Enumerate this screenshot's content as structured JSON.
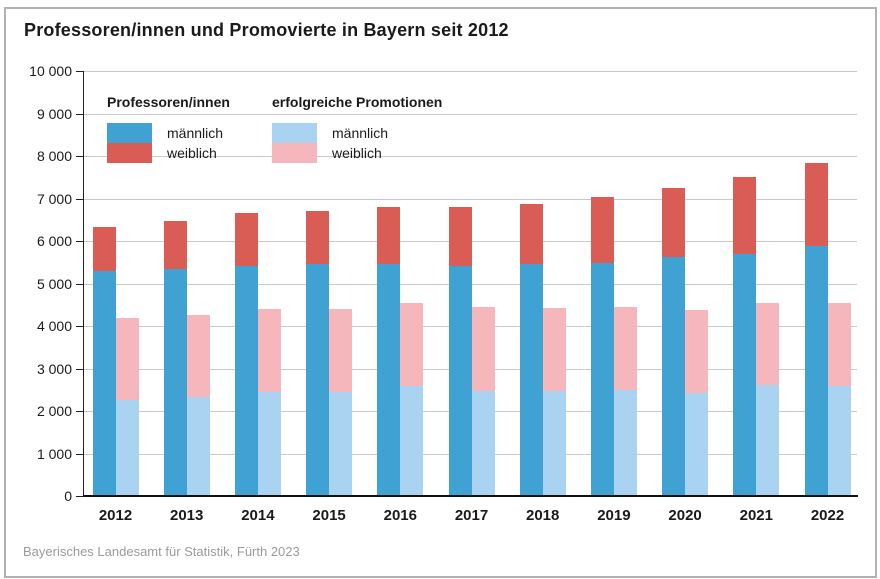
{
  "title": "Professoren/innen und Promovierte in Bayern seit 2012",
  "source": "Bayerisches Landesamt für Statistik, Fürth 2023",
  "legend": {
    "professoren_title": "Professoren/innen",
    "promotionen_title": "erfolgreiche Promotionen",
    "maennlich": "männlich",
    "weiblich": "weiblich"
  },
  "colors": {
    "prof_m": "#3fa2d2",
    "prof_w": "#d95c55",
    "prom_m": "#a9d3f0",
    "prom_w": "#f5b7bc",
    "grid": "#c9c9c9",
    "axis": "#222222",
    "frame": "#b2b2b2",
    "source_text": "#9b9b9b"
  },
  "chart_data": {
    "type": "bar",
    "stacked": true,
    "grid": true,
    "legend_position": "inside-top-left",
    "title": "Professoren/innen und Promovierte in Bayern seit 2012",
    "xlabel": "",
    "ylabel": "",
    "ylim": [
      0,
      10000
    ],
    "ytick_interval": 1000,
    "yticks": [
      {
        "value": 10000,
        "label": "10 000"
      },
      {
        "value": 9000,
        "label": "9 000"
      },
      {
        "value": 8000,
        "label": "8 000"
      },
      {
        "value": 7000,
        "label": "7 000"
      },
      {
        "value": 6000,
        "label": "6 000"
      },
      {
        "value": 5000,
        "label": "5 000"
      },
      {
        "value": 4000,
        "label": "4 000"
      },
      {
        "value": 3000,
        "label": "3 000"
      },
      {
        "value": 2000,
        "label": "2 000"
      },
      {
        "value": 1000,
        "label": "1 000"
      },
      {
        "value": 0,
        "label": "0"
      }
    ],
    "categories": [
      "2012",
      "2013",
      "2014",
      "2015",
      "2016",
      "2017",
      "2018",
      "2019",
      "2020",
      "2021",
      "2022"
    ],
    "stacks": [
      [
        "prof_m",
        "prof_w"
      ],
      [
        "prom_m",
        "prom_w"
      ]
    ],
    "series": [
      {
        "id": "prof_m",
        "name": "Professoren/innen männlich",
        "color_key": "prof_m",
        "values": [
          5300,
          5330,
          5420,
          5450,
          5450,
          5410,
          5450,
          5480,
          5620,
          5700,
          5880
        ]
      },
      {
        "id": "prof_w",
        "name": "Professoren/innen weiblich",
        "color_key": "prof_w",
        "values": [
          1030,
          1130,
          1230,
          1250,
          1340,
          1380,
          1420,
          1550,
          1630,
          1810,
          1960
        ]
      },
      {
        "id": "prom_m",
        "name": "erfolgreiche Promotionen männlich",
        "color_key": "prom_m",
        "values": [
          2250,
          2330,
          2450,
          2440,
          2600,
          2480,
          2470,
          2490,
          2420,
          2620,
          2590
        ]
      },
      {
        "id": "prom_w",
        "name": "erfolgreiche Promotionen weiblich",
        "color_key": "prom_w",
        "values": [
          1930,
          1940,
          1950,
          1950,
          1950,
          1970,
          1950,
          1950,
          1950,
          1930,
          1960
        ]
      }
    ]
  }
}
